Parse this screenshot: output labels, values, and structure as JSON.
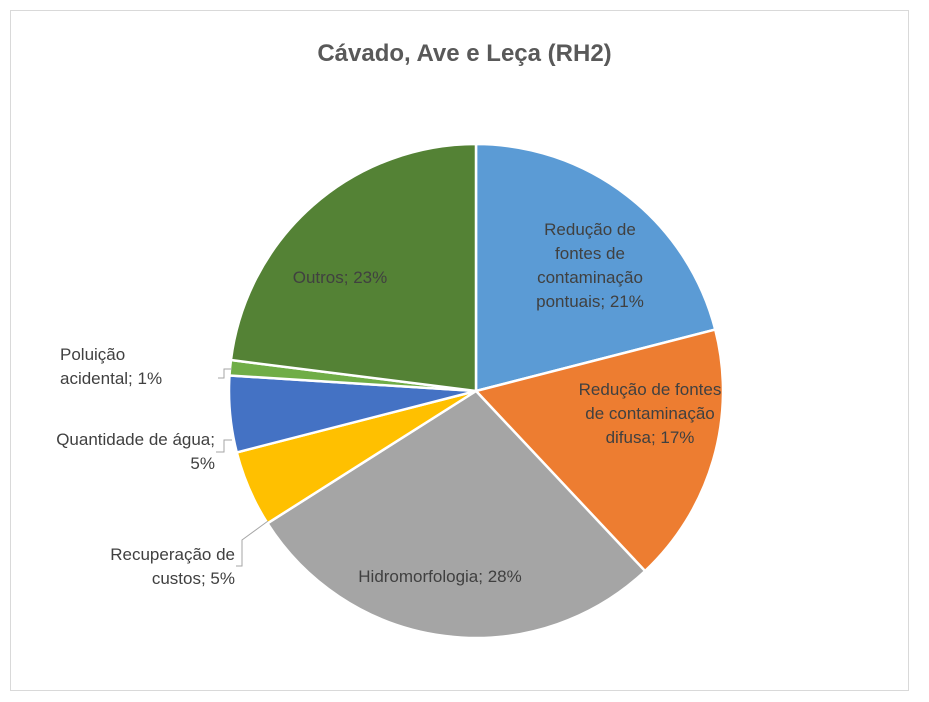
{
  "chart_data": {
    "type": "pie",
    "title": "Cávado, Ave e Leça (RH2)",
    "values": [
      21,
      17,
      28,
      5,
      5,
      1,
      23
    ],
    "value_labels": [
      "Redução de fontes de contaminação pontuais; 21%",
      "Redução de fontes de contaminação difusa; 17%",
      "Hidromorfologia; 28%",
      "Recuperação de custos; 5%",
      "Quantidade de água; 5%",
      "Poluição acidental; 1%",
      "Outros; 23%"
    ],
    "colors": [
      "#5b9bd5",
      "#ed7d31",
      "#a5a5a5",
      "#ffc000",
      "#4472c4",
      "#70ad47",
      "#548235"
    ]
  }
}
